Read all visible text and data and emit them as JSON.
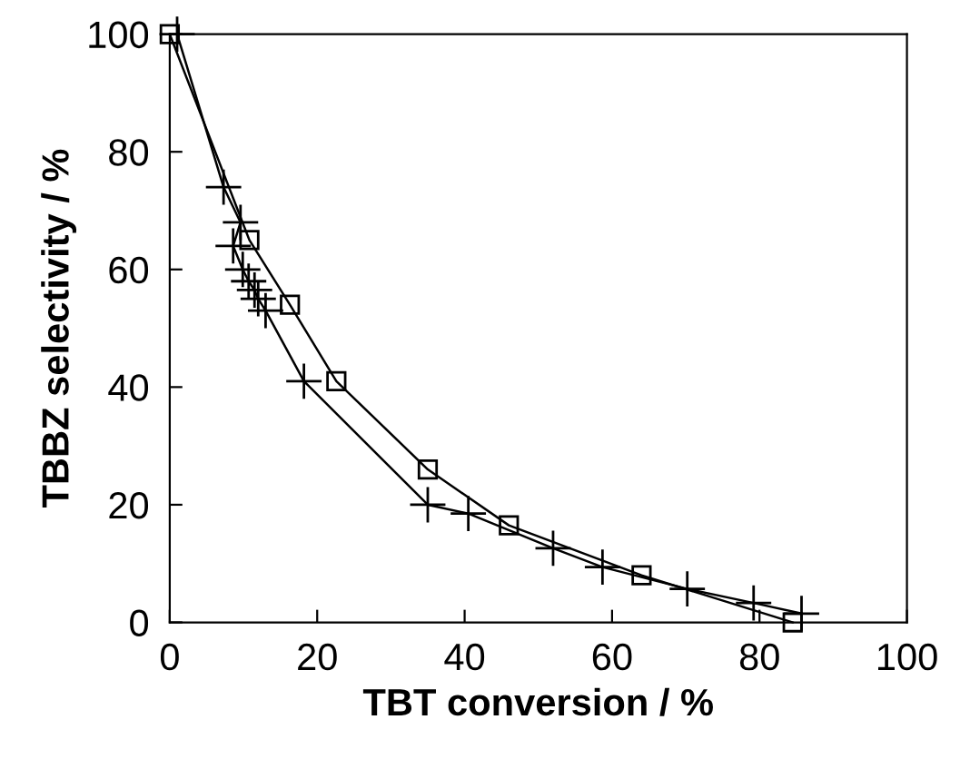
{
  "chart_data": {
    "type": "line",
    "xlabel": "TBT conversion / %",
    "ylabel": "TBBZ selectivity / %",
    "xlim": [
      0,
      100
    ],
    "ylim": [
      0,
      100
    ],
    "xticks": [
      0,
      20,
      40,
      60,
      80,
      100
    ],
    "yticks": [
      0,
      20,
      40,
      60,
      80,
      100
    ],
    "grid": false,
    "legend": false,
    "series": [
      {
        "color": "#000000",
        "marker": "square",
        "x": [
          0,
          10.8,
          16.3,
          22.6,
          35,
          46,
          64,
          84.5
        ],
        "values": [
          100,
          65,
          54,
          41,
          26,
          16.5,
          8,
          0
        ]
      },
      {
        "color": "#000000",
        "marker": "cross",
        "x": [
          1,
          7.3,
          9.6,
          8.6,
          9.9,
          10.7,
          11.5,
          12,
          13,
          18.2,
          35,
          40.5,
          52,
          58.7,
          70.2,
          79.2,
          85.7
        ],
        "values": [
          100,
          74,
          68,
          64,
          60,
          58,
          56.5,
          55,
          53,
          41,
          20,
          18.5,
          12.6,
          9.4,
          5.7,
          3.3,
          1.5
        ]
      }
    ]
  }
}
